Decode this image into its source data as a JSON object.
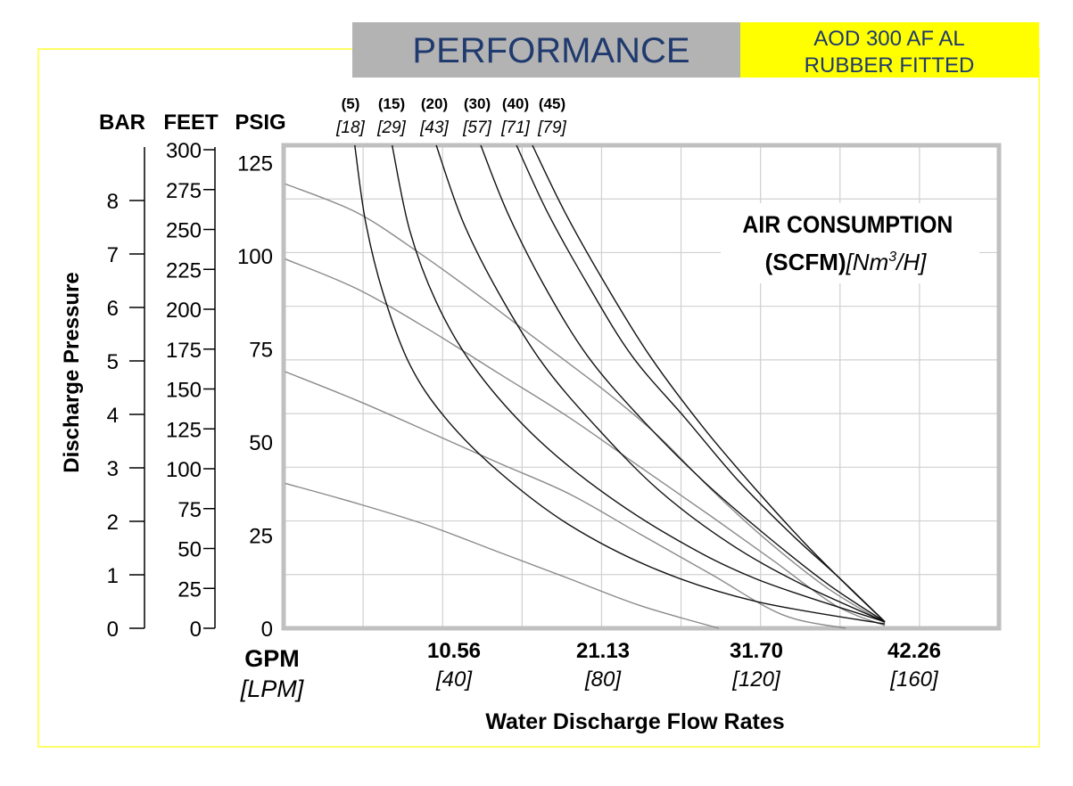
{
  "header": {
    "title": "PERFORMANCE",
    "model_line1": "AOD 300 AF AL",
    "model_line2": "RUBBER FITTED",
    "title_bg": "#b3b3b3",
    "title_color": "#1f3a6e",
    "model_bg": "#ffff00"
  },
  "chart_data": {
    "type": "line",
    "title": "PERFORMANCE",
    "xlabel": "Water Discharge Flow Rates",
    "x_unit_label": "GPM",
    "x_unit_label_alt": "[LPM]",
    "ylabel": "Discharge Pressure",
    "y_axes": [
      {
        "name": "BAR",
        "ticks": [
          "0",
          "1",
          "2",
          "3",
          "4",
          "5",
          "6",
          "7",
          "8"
        ]
      },
      {
        "name": "FEET",
        "ticks": [
          "0",
          "25",
          "50",
          "75",
          "100",
          "125",
          "150",
          "175",
          "200",
          "225",
          "250",
          "275",
          "300"
        ]
      },
      {
        "name": "PSIG",
        "ticks": [
          "0",
          "25",
          "50",
          "75",
          "100",
          "125"
        ]
      }
    ],
    "x_ticks": [
      {
        "gpm": "10.56",
        "lpm": "[40]"
      },
      {
        "gpm": "21.13",
        "lpm": "[80]"
      },
      {
        "gpm": "31.70",
        "lpm": "[120]"
      },
      {
        "gpm": "42.26",
        "lpm": "[160]"
      }
    ],
    "xlim_lpm": [
      0,
      180
    ],
    "ylim_bar": [
      0,
      9
    ],
    "grid": true,
    "annotation_line1": "AIR CONSUMPTION",
    "annotation_line2": "(SCFM)",
    "annotation_unit": "[Nm",
    "annotation_sup": "3",
    "annotation_unit_end": "/H]",
    "air_consumption_labels": [
      {
        "scfm": "(5)",
        "nm3h": "[18]"
      },
      {
        "scfm": "(15)",
        "nm3h": "[29]"
      },
      {
        "scfm": "(20)",
        "nm3h": "[43]"
      },
      {
        "scfm": "(30)",
        "nm3h": "[57]"
      },
      {
        "scfm": "(40)",
        "nm3h": "[71]"
      },
      {
        "scfm": "(45)",
        "nm3h": "[79]"
      }
    ],
    "series_units": "x: LPM, y: BAR",
    "pressure_curves": [
      {
        "name": "inlet-pressure-1",
        "points": [
          [
            0.4,
            8.28
          ],
          [
            18.3,
            7.75
          ],
          [
            34.0,
            7.0
          ],
          [
            49.6,
            6.17
          ],
          [
            63.0,
            5.42
          ],
          [
            80.9,
            4.42
          ],
          [
            94.3,
            3.58
          ],
          [
            107.7,
            2.58
          ],
          [
            121.1,
            1.67
          ],
          [
            136.8,
            0.75
          ],
          [
            151.3,
            0.1
          ]
        ]
      },
      {
        "name": "inlet-pressure-2",
        "points": [
          [
            0.4,
            6.88
          ],
          [
            18.3,
            6.33
          ],
          [
            36.2,
            5.58
          ],
          [
            54.1,
            4.75
          ],
          [
            72.0,
            3.92
          ],
          [
            89.8,
            3.0
          ],
          [
            107.7,
            2.08
          ],
          [
            123.4,
            1.25
          ],
          [
            139.0,
            0.42
          ],
          [
            151.3,
            0.05
          ]
        ]
      },
      {
        "name": "inlet-pressure-3",
        "points": [
          [
            0.4,
            4.78
          ],
          [
            18.3,
            4.25
          ],
          [
            36.2,
            3.67
          ],
          [
            54.1,
            3.08
          ],
          [
            72.0,
            2.5
          ],
          [
            89.8,
            1.75
          ],
          [
            107.7,
            1.0
          ],
          [
            125.6,
            0.25
          ],
          [
            141.5,
            0
          ]
        ]
      },
      {
        "name": "inlet-pressure-4",
        "points": [
          [
            0.4,
            2.7
          ],
          [
            18.3,
            2.33
          ],
          [
            36.2,
            1.92
          ],
          [
            54.1,
            1.42
          ],
          [
            72.0,
            0.92
          ],
          [
            89.8,
            0.42
          ],
          [
            109.5,
            0
          ]
        ]
      }
    ],
    "air_curves": [
      {
        "name": "5 SCFM",
        "points": [
          [
            17.9,
            9.0
          ],
          [
            20.6,
            7.58
          ],
          [
            25.0,
            6.25
          ],
          [
            31.7,
            4.92
          ],
          [
            40.7,
            3.92
          ],
          [
            54.1,
            2.92
          ],
          [
            72.0,
            1.92
          ],
          [
            94.3,
            1.08
          ],
          [
            118.9,
            0.5
          ],
          [
            151.3,
            0.08
          ]
        ]
      },
      {
        "name": "15 SCFM",
        "points": [
          [
            27.3,
            9.0
          ],
          [
            31.7,
            7.42
          ],
          [
            38.4,
            6.08
          ],
          [
            47.4,
            4.92
          ],
          [
            60.8,
            3.75
          ],
          [
            76.4,
            2.75
          ],
          [
            96.6,
            1.75
          ],
          [
            118.9,
            0.92
          ],
          [
            151.3,
            0.12
          ]
        ]
      },
      {
        "name": "20 SCFM",
        "points": [
          [
            38.4,
            9.0
          ],
          [
            45.1,
            7.58
          ],
          [
            54.1,
            6.25
          ],
          [
            65.3,
            4.92
          ],
          [
            78.7,
            3.75
          ],
          [
            94.3,
            2.58
          ],
          [
            112.2,
            1.58
          ],
          [
            130.1,
            0.83
          ],
          [
            151.3,
            0.12
          ]
        ]
      },
      {
        "name": "30 SCFM",
        "points": [
          [
            49.6,
            9.0
          ],
          [
            56.3,
            7.75
          ],
          [
            65.3,
            6.42
          ],
          [
            76.4,
            5.08
          ],
          [
            89.8,
            3.92
          ],
          [
            105.5,
            2.75
          ],
          [
            121.1,
            1.75
          ],
          [
            136.8,
            0.83
          ],
          [
            151.3,
            0.12
          ]
        ]
      },
      {
        "name": "40 SCFM",
        "points": [
          [
            58.6,
            9.0
          ],
          [
            66.4,
            7.75
          ],
          [
            76.4,
            6.42
          ],
          [
            87.6,
            5.08
          ],
          [
            101.0,
            3.92
          ],
          [
            114.4,
            2.75
          ],
          [
            127.8,
            1.75
          ],
          [
            140.1,
            0.92
          ],
          [
            151.3,
            0.12
          ]
        ]
      },
      {
        "name": "45 SCFM",
        "points": [
          [
            62.6,
            9.0
          ],
          [
            70.8,
            7.75
          ],
          [
            80.9,
            6.42
          ],
          [
            92.1,
            5.08
          ],
          [
            105.5,
            3.75
          ],
          [
            118.9,
            2.58
          ],
          [
            131.2,
            1.58
          ],
          [
            142.4,
            0.75
          ],
          [
            151.3,
            0.12
          ]
        ]
      }
    ]
  }
}
